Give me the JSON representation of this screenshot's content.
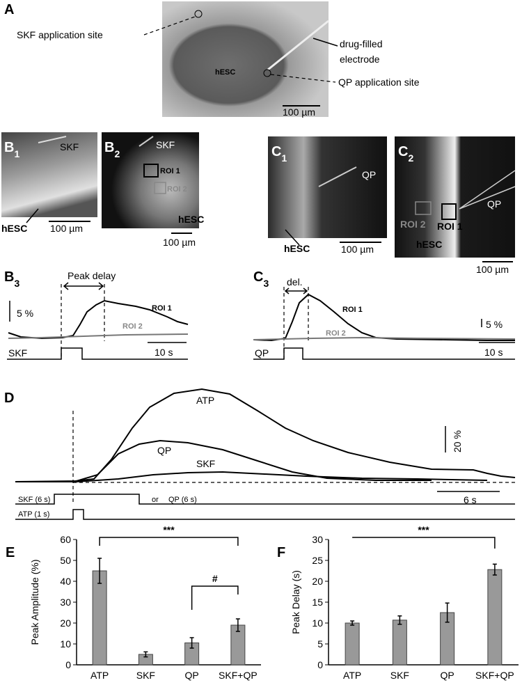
{
  "panel_a": {
    "label": "A",
    "skf_site": "SKF application site",
    "electrode": [
      "drug-filled",
      "electrode"
    ],
    "cell": "hESC",
    "qp_site": "QP application site",
    "scale": "100 µm"
  },
  "panel_b1": {
    "label": "B",
    "sub": "1",
    "drug": "SKF",
    "cell": "hESC",
    "scale": "100 µm"
  },
  "panel_b2": {
    "label": "B",
    "sub": "2",
    "drug": "SKF",
    "roi1": "ROI 1",
    "roi2": "ROI 2",
    "cell": "hESC",
    "scale": "100 µm"
  },
  "panel_c1": {
    "label": "C",
    "sub": "1",
    "drug": "QP",
    "cell": "hESC",
    "scale": "100 µm"
  },
  "panel_c2": {
    "label": "C",
    "sub": "2",
    "drug": "QP",
    "roi2": "ROI 2",
    "roi1": "ROI 1",
    "cell": "hESC",
    "scale": "100 µm"
  },
  "panel_b3": {
    "label": "B",
    "sub": "3",
    "delay": "Peak delay",
    "amp_scale": "5 %",
    "roi1": "ROI 1",
    "roi2": "ROI 2",
    "stim": "SKF",
    "time_scale": "10 s"
  },
  "panel_c3": {
    "label": "C",
    "sub": "3",
    "delay": "del.",
    "roi1": "ROI 1",
    "roi2": "ROI 2",
    "amp_scale": "5 %",
    "stim": "QP",
    "time_scale": "10 s"
  },
  "panel_d": {
    "label": "D",
    "atp": "ATP",
    "qp": "QP",
    "skf": "SKF",
    "amp_scale": "20 %",
    "time_scale": "6 s",
    "stim_skf": "SKF (6 s)",
    "or": "or",
    "stim_qp": "QP (6 s)",
    "stim_atp": "ATP (1 s)"
  },
  "chart_data": [
    {
      "type": "bar",
      "label": "E",
      "ylabel": "Peak Amplitude (%)",
      "categories": [
        "ATP",
        "SKF",
        "QP",
        "SKF+QP"
      ],
      "values": [
        45,
        5,
        10.5,
        19
      ],
      "errors": [
        6,
        1.2,
        2.5,
        3
      ],
      "color": "#999999",
      "ylim": [
        0,
        60
      ],
      "yticks": [
        0,
        10,
        20,
        30,
        40,
        50,
        60
      ],
      "annotations": [
        "***",
        "#"
      ]
    },
    {
      "type": "bar",
      "label": "F",
      "ylabel": "Peak Delay (s)",
      "categories": [
        "ATP",
        "SKF",
        "QP",
        "SKF+QP"
      ],
      "values": [
        10,
        10.7,
        12.5,
        22.8
      ],
      "errors": [
        0.5,
        1,
        2.3,
        1.3
      ],
      "color": "#999999",
      "ylim": [
        0,
        30
      ],
      "yticks": [
        0,
        5,
        10,
        15,
        20,
        25,
        30
      ],
      "annotations": [
        "***"
      ]
    }
  ]
}
